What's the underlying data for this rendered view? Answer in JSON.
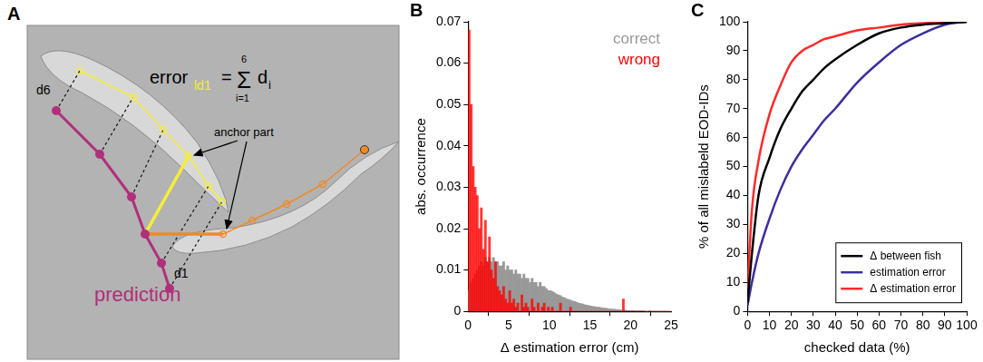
{
  "diagram": {
    "panel": "A",
    "formula": {
      "lhs": "error",
      "lhs_sub": "ld1",
      "eq": "=",
      "sum": "Σ",
      "upper": "6",
      "lower": "i=1",
      "term": "d",
      "term_sub": "i"
    },
    "annotation": "anchor part",
    "distance_labels": [
      "d6",
      "d1"
    ],
    "prediction_label": "prediction"
  },
  "chart_data": [
    {
      "type": "histogram",
      "title": "B",
      "x_label": "Δ estimation error (cm)",
      "y_label": "abs. occurrence",
      "bins": [
        0,
        0.25,
        0.5,
        0.75,
        1,
        1.25,
        1.5,
        1.75,
        2,
        2.25,
        2.5,
        2.75,
        3,
        3.25,
        3.5,
        3.75,
        4,
        4.25,
        4.5,
        4.75,
        5,
        5.25,
        5.5,
        5.75,
        6,
        6.25,
        6.5,
        6.75,
        7,
        7.25,
        7.5,
        7.75,
        8,
        8.25,
        8.5,
        8.75,
        9,
        9.25,
        9.5,
        9.75,
        10,
        10.25,
        10.5,
        10.75,
        11,
        11.25,
        11.5,
        11.75,
        12,
        12.25,
        12.5,
        12.75,
        13,
        13.25,
        13.5,
        13.75,
        14,
        14.25,
        14.5,
        14.75,
        15,
        15.25,
        15.5,
        15.75,
        16,
        16.25,
        16.5,
        16.75,
        17,
        17.25,
        17.5,
        17.75,
        18,
        18.25,
        18.5,
        18.75,
        19,
        19.25,
        19.5,
        19.75,
        20,
        20.25,
        20.5,
        20.75,
        21,
        21.25,
        21.5,
        21.75,
        22,
        22.25,
        22.5,
        22.75,
        23,
        23.25,
        23.5,
        23.75,
        24,
        24.25,
        24.5,
        24.75,
        25
      ],
      "series": [
        {
          "name": "correct",
          "color": "#999999",
          "values": [
            0.005,
            0.007,
            0.008,
            0.009,
            0.01,
            0.011,
            0.012,
            0.011,
            0.013,
            0.012,
            0.013,
            0.012,
            0.013,
            0.012,
            0.012,
            0.011,
            0.011,
            0.012,
            0.01,
            0.011,
            0.01,
            0.01,
            0.009,
            0.01,
            0.009,
            0.009,
            0.008,
            0.009,
            0.008,
            0.008,
            0.007,
            0.008,
            0.007,
            0.007,
            0.006,
            0.007,
            0.006,
            0.006,
            0.0055,
            0.005,
            0.005,
            0.0048,
            0.0045,
            0.0042,
            0.004,
            0.0038,
            0.0035,
            0.0033,
            0.003,
            0.0029,
            0.0027,
            0.0025,
            0.0024,
            0.0022,
            0.002,
            0.0019,
            0.0018,
            0.0016,
            0.0015,
            0.0014,
            0.0013,
            0.0012,
            0.0011,
            0.001,
            0.001,
            0.0009,
            0.0008,
            0.0008,
            0.0007,
            0.0006,
            0.0006,
            0.0005,
            0.0005,
            0.0004,
            0.0004,
            0.0003,
            0.0003,
            0.0003,
            0.0002,
            0.0002,
            0.0002,
            0.0002,
            0.0001,
            0.0001,
            0.0001,
            0.0001,
            0.0001,
            0,
            0,
            0.0001,
            0,
            0,
            0,
            0,
            0,
            0,
            0,
            0,
            0,
            0
          ]
        },
        {
          "name": "wrong",
          "color": "#ff0000",
          "values": [
            0.068,
            0.05,
            0.035,
            0.03,
            0.028,
            0.02,
            0.025,
            0.015,
            0.022,
            0.012,
            0.018,
            0.01,
            0.008,
            0.012,
            0.006,
            0.005,
            0.004,
            0.006,
            0.003,
            0.002,
            0.005,
            0.002,
            0.003,
            0.001,
            0.002,
            0,
            0.004,
            0.001,
            0.002,
            0.001,
            0,
            0.003,
            0.001,
            0,
            0.002,
            0,
            0.001,
            0.002,
            0,
            0.001,
            0,
            0.001,
            0,
            0,
            0,
            0.002,
            0,
            0,
            0,
            0,
            0.001,
            0,
            0,
            0,
            0,
            0,
            0,
            0,
            0,
            0,
            0,
            0,
            0,
            0,
            0,
            0,
            0,
            0,
            0,
            0,
            0,
            0,
            0,
            0,
            0,
            0,
            0.003,
            0,
            0,
            0,
            0,
            0,
            0,
            0,
            0,
            0,
            0,
            0,
            0,
            0,
            0,
            0,
            0,
            0,
            0,
            0,
            0,
            0,
            0,
            0
          ]
        }
      ],
      "xlim": [
        0,
        25
      ],
      "xticks": [
        0,
        5,
        10,
        15,
        20,
        25
      ],
      "ylim": [
        0,
        0.07
      ],
      "yticks": [
        0,
        0.01,
        0.02,
        0.03,
        0.04,
        0.05,
        0.06,
        0.07
      ],
      "grid": false,
      "legend": "upper right"
    },
    {
      "type": "line",
      "title": "C",
      "x_label": "checked data (%)",
      "y_label": "% of all mislabeld EOD-IDs",
      "x": [
        0,
        2,
        5,
        10,
        15,
        20,
        25,
        30,
        35,
        40,
        50,
        60,
        70,
        80,
        90,
        100
      ],
      "series": [
        {
          "name": "Δ between fish",
          "color": "#000000",
          "values": [
            3,
            20,
            40,
            53,
            63,
            70,
            76,
            80,
            84,
            87,
            92,
            96,
            98,
            99,
            99.5,
            100
          ]
        },
        {
          "name": "estimation error",
          "color": "#3b2f9e",
          "values": [
            2,
            10,
            20,
            32,
            42,
            50,
            56,
            61,
            66,
            70,
            79,
            86,
            92,
            96,
            99,
            100
          ]
        },
        {
          "name": "Δ estimation error",
          "color": "#ff2a2a",
          "values": [
            8,
            35,
            52,
            68,
            78,
            86,
            90,
            92,
            94,
            95,
            97,
            98,
            99,
            99.5,
            100,
            100
          ]
        }
      ],
      "xlim": [
        0,
        100
      ],
      "xticks": [
        0,
        10,
        20,
        30,
        40,
        50,
        60,
        70,
        80,
        90,
        100
      ],
      "ylim": [
        0,
        100
      ],
      "yticks": [
        0,
        10,
        20,
        30,
        40,
        50,
        60,
        70,
        80,
        90,
        100
      ],
      "grid": false,
      "legend": "lower right"
    }
  ]
}
